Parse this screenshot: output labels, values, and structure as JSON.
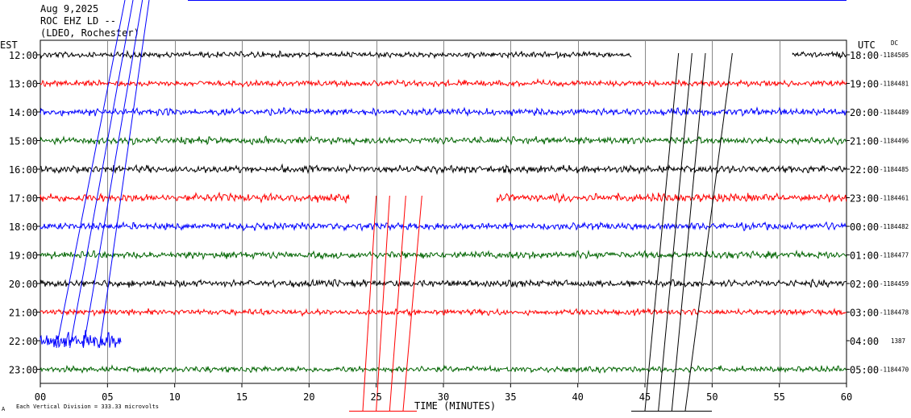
{
  "chart_data": {
    "type": "line",
    "header": [
      "Aug 9,2025",
      "ROC EHZ LD --",
      "(LDEO, Rochester)"
    ],
    "left_axis_title": "EST",
    "right_axis_title": "UTC",
    "dc_title": "DC",
    "xlabel": "TIME (MINUTES)",
    "xlim": [
      0,
      60
    ],
    "x_ticks": [
      "00",
      "05",
      "10",
      "15",
      "20",
      "25",
      "30",
      "35",
      "40",
      "45",
      "50",
      "55",
      "60"
    ],
    "scale_note": "Each Vertical Division =  333.33 microvolts",
    "corner_mark": "A",
    "rows": [
      {
        "est": "12:00",
        "utc": "18:00",
        "dc": "-1184505",
        "color": "#000000",
        "amp": 2.5,
        "segments": [
          [
            0,
            44
          ],
          [
            56,
            60
          ]
        ]
      },
      {
        "est": "13:00",
        "utc": "19:00",
        "dc": "-1184481",
        "color": "#ff0000",
        "amp": 2.5,
        "segments": [
          [
            0,
            60
          ]
        ]
      },
      {
        "est": "14:00",
        "utc": "20:00",
        "dc": "-1184489",
        "color": "#0000ff",
        "amp": 3.0,
        "segments": [
          [
            0,
            60
          ]
        ]
      },
      {
        "est": "15:00",
        "utc": "21:00",
        "dc": "-1184496",
        "color": "#006400",
        "amp": 3.0,
        "segments": [
          [
            0,
            60
          ]
        ]
      },
      {
        "est": "16:00",
        "utc": "22:00",
        "dc": "-1184485",
        "color": "#000000",
        "amp": 3.0,
        "segments": [
          [
            0,
            60
          ]
        ]
      },
      {
        "est": "17:00",
        "utc": "23:00",
        "dc": "-1184461",
        "color": "#ff0000",
        "amp": 3.5,
        "segments": [
          [
            0,
            23
          ],
          [
            34,
            60
          ]
        ]
      },
      {
        "est": "18:00",
        "utc": "00:00",
        "dc": "-1184482",
        "color": "#0000ff",
        "amp": 3.0,
        "segments": [
          [
            0,
            60
          ]
        ]
      },
      {
        "est": "19:00",
        "utc": "01:00",
        "dc": "-1184477",
        "color": "#006400",
        "amp": 3.0,
        "segments": [
          [
            0,
            60
          ]
        ]
      },
      {
        "est": "20:00",
        "utc": "02:00",
        "dc": "-1184459",
        "color": "#000000",
        "amp": 3.0,
        "segments": [
          [
            0,
            60
          ]
        ]
      },
      {
        "est": "21:00",
        "utc": "03:00",
        "dc": "-1184478",
        "color": "#ff0000",
        "amp": 2.5,
        "segments": [
          [
            0,
            60
          ]
        ]
      },
      {
        "est": "22:00",
        "utc": "04:00",
        "dc": "1387",
        "color": "#0000ff",
        "amp": 7.0,
        "segments": [
          [
            0,
            6
          ]
        ]
      },
      {
        "est": "23:00",
        "utc": "05:00",
        "dc": "-1184470",
        "color": "#006400",
        "amp": 2.5,
        "segments": [
          [
            0,
            60
          ]
        ]
      }
    ]
  }
}
